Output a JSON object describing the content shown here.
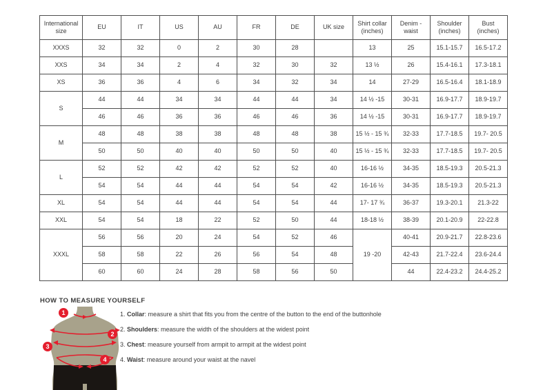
{
  "table": {
    "columns": [
      "International size",
      "EU",
      "IT",
      "US",
      "AU",
      "FR",
      "DE",
      "UK size",
      "Shirt collar (inches)",
      "Denim - waist",
      "Shoulder (inches)",
      "Bust (inches)"
    ],
    "rows": [
      [
        "XXXS",
        "32",
        "32",
        "0",
        "2",
        "30",
        "28",
        "",
        "13",
        "25",
        "15.1-15.7",
        "16.5-17.2"
      ],
      [
        "XXS",
        "34",
        "34",
        "2",
        "4",
        "32",
        "30",
        "32",
        "13 ½",
        "26",
        "15.4-16.1",
        "17.3-18.1"
      ],
      [
        "XS",
        "36",
        "36",
        "4",
        "6",
        "34",
        "32",
        "34",
        "14",
        "27-29",
        "16.5-16.4",
        "18.1-18.9"
      ],
      [
        {
          "t": "S",
          "rs": 2
        },
        "44",
        "44",
        "34",
        "34",
        "44",
        "44",
        "34",
        "14 ½ -15",
        "30-31",
        "16.9-17.7",
        "18.9-19.7"
      ],
      [
        "46",
        "46",
        "36",
        "36",
        "46",
        "46",
        "36",
        "14 ½ -15",
        "30-31",
        "16.9-17.7",
        "18.9-19.7"
      ],
      [
        {
          "t": "M",
          "rs": 2
        },
        "48",
        "48",
        "38",
        "38",
        "48",
        "48",
        "38",
        "15 ½ - 15 ¾",
        "32-33",
        "17.7-18.5",
        "19.7- 20.5"
      ],
      [
        "50",
        "50",
        "40",
        "40",
        "50",
        "50",
        "40",
        "15 ½ - 15 ¾",
        "32-33",
        "17.7-18.5",
        "19.7- 20.5"
      ],
      [
        {
          "t": "L",
          "rs": 2
        },
        "52",
        "52",
        "42",
        "42",
        "52",
        "52",
        "40",
        "16-16 ½",
        "34-35",
        "18.5-19.3",
        "20.5-21.3"
      ],
      [
        "54",
        "54",
        "44",
        "44",
        "54",
        "54",
        "42",
        "16-16 ½",
        "34-35",
        "18.5-19.3",
        "20.5-21.3"
      ],
      [
        "XL",
        "54",
        "54",
        "44",
        "44",
        "54",
        "54",
        "44",
        "17- 17 ¾",
        "36-37",
        "19.3-20.1",
        "21.3-22"
      ],
      [
        "XXL",
        "54",
        "54",
        "18",
        "22",
        "52",
        "50",
        "44",
        "18-18 ½",
        "38-39",
        "20.1-20.9",
        "22-22.8"
      ],
      [
        {
          "t": "XXXL",
          "rs": 3
        },
        "56",
        "56",
        "20",
        "24",
        "54",
        "52",
        "46",
        {
          "t": "19 -20",
          "rs": 3
        },
        "40-41",
        "20.9-21.7",
        "22.8-23.6"
      ],
      [
        "58",
        "58",
        "22",
        "26",
        "56",
        "54",
        "48",
        "42-43",
        "21.7-22.4",
        "23.6-24.4"
      ],
      [
        "60",
        "60",
        "24",
        "28",
        "58",
        "56",
        "50",
        "44",
        "22.4-23.2",
        "24.4-25.2"
      ]
    ]
  },
  "measure": {
    "title": "HOW TO MEASURE YOURSELF",
    "items": [
      {
        "num": "1.",
        "label": "Collar",
        "rest": ": measure a shirt that fits you from the centre of the button to the end of the buttonhole"
      },
      {
        "num": "2.",
        "label": "Shoulders",
        "rest": ": measure the width of the shoulders at the widest point"
      },
      {
        "num": "3.",
        "label": "Chest",
        "rest": ": measure yourself from armpit to armpit at the widest point"
      },
      {
        "num": "4.",
        "label": "Waist",
        "rest": ": measure around your waist at the navel"
      }
    ]
  },
  "mannequin": {
    "badges": [
      "1",
      "2",
      "3",
      "4"
    ],
    "body_color": "#a8a28b",
    "shorts_color": "#1a1613",
    "accent_red": "#e41e2d"
  }
}
